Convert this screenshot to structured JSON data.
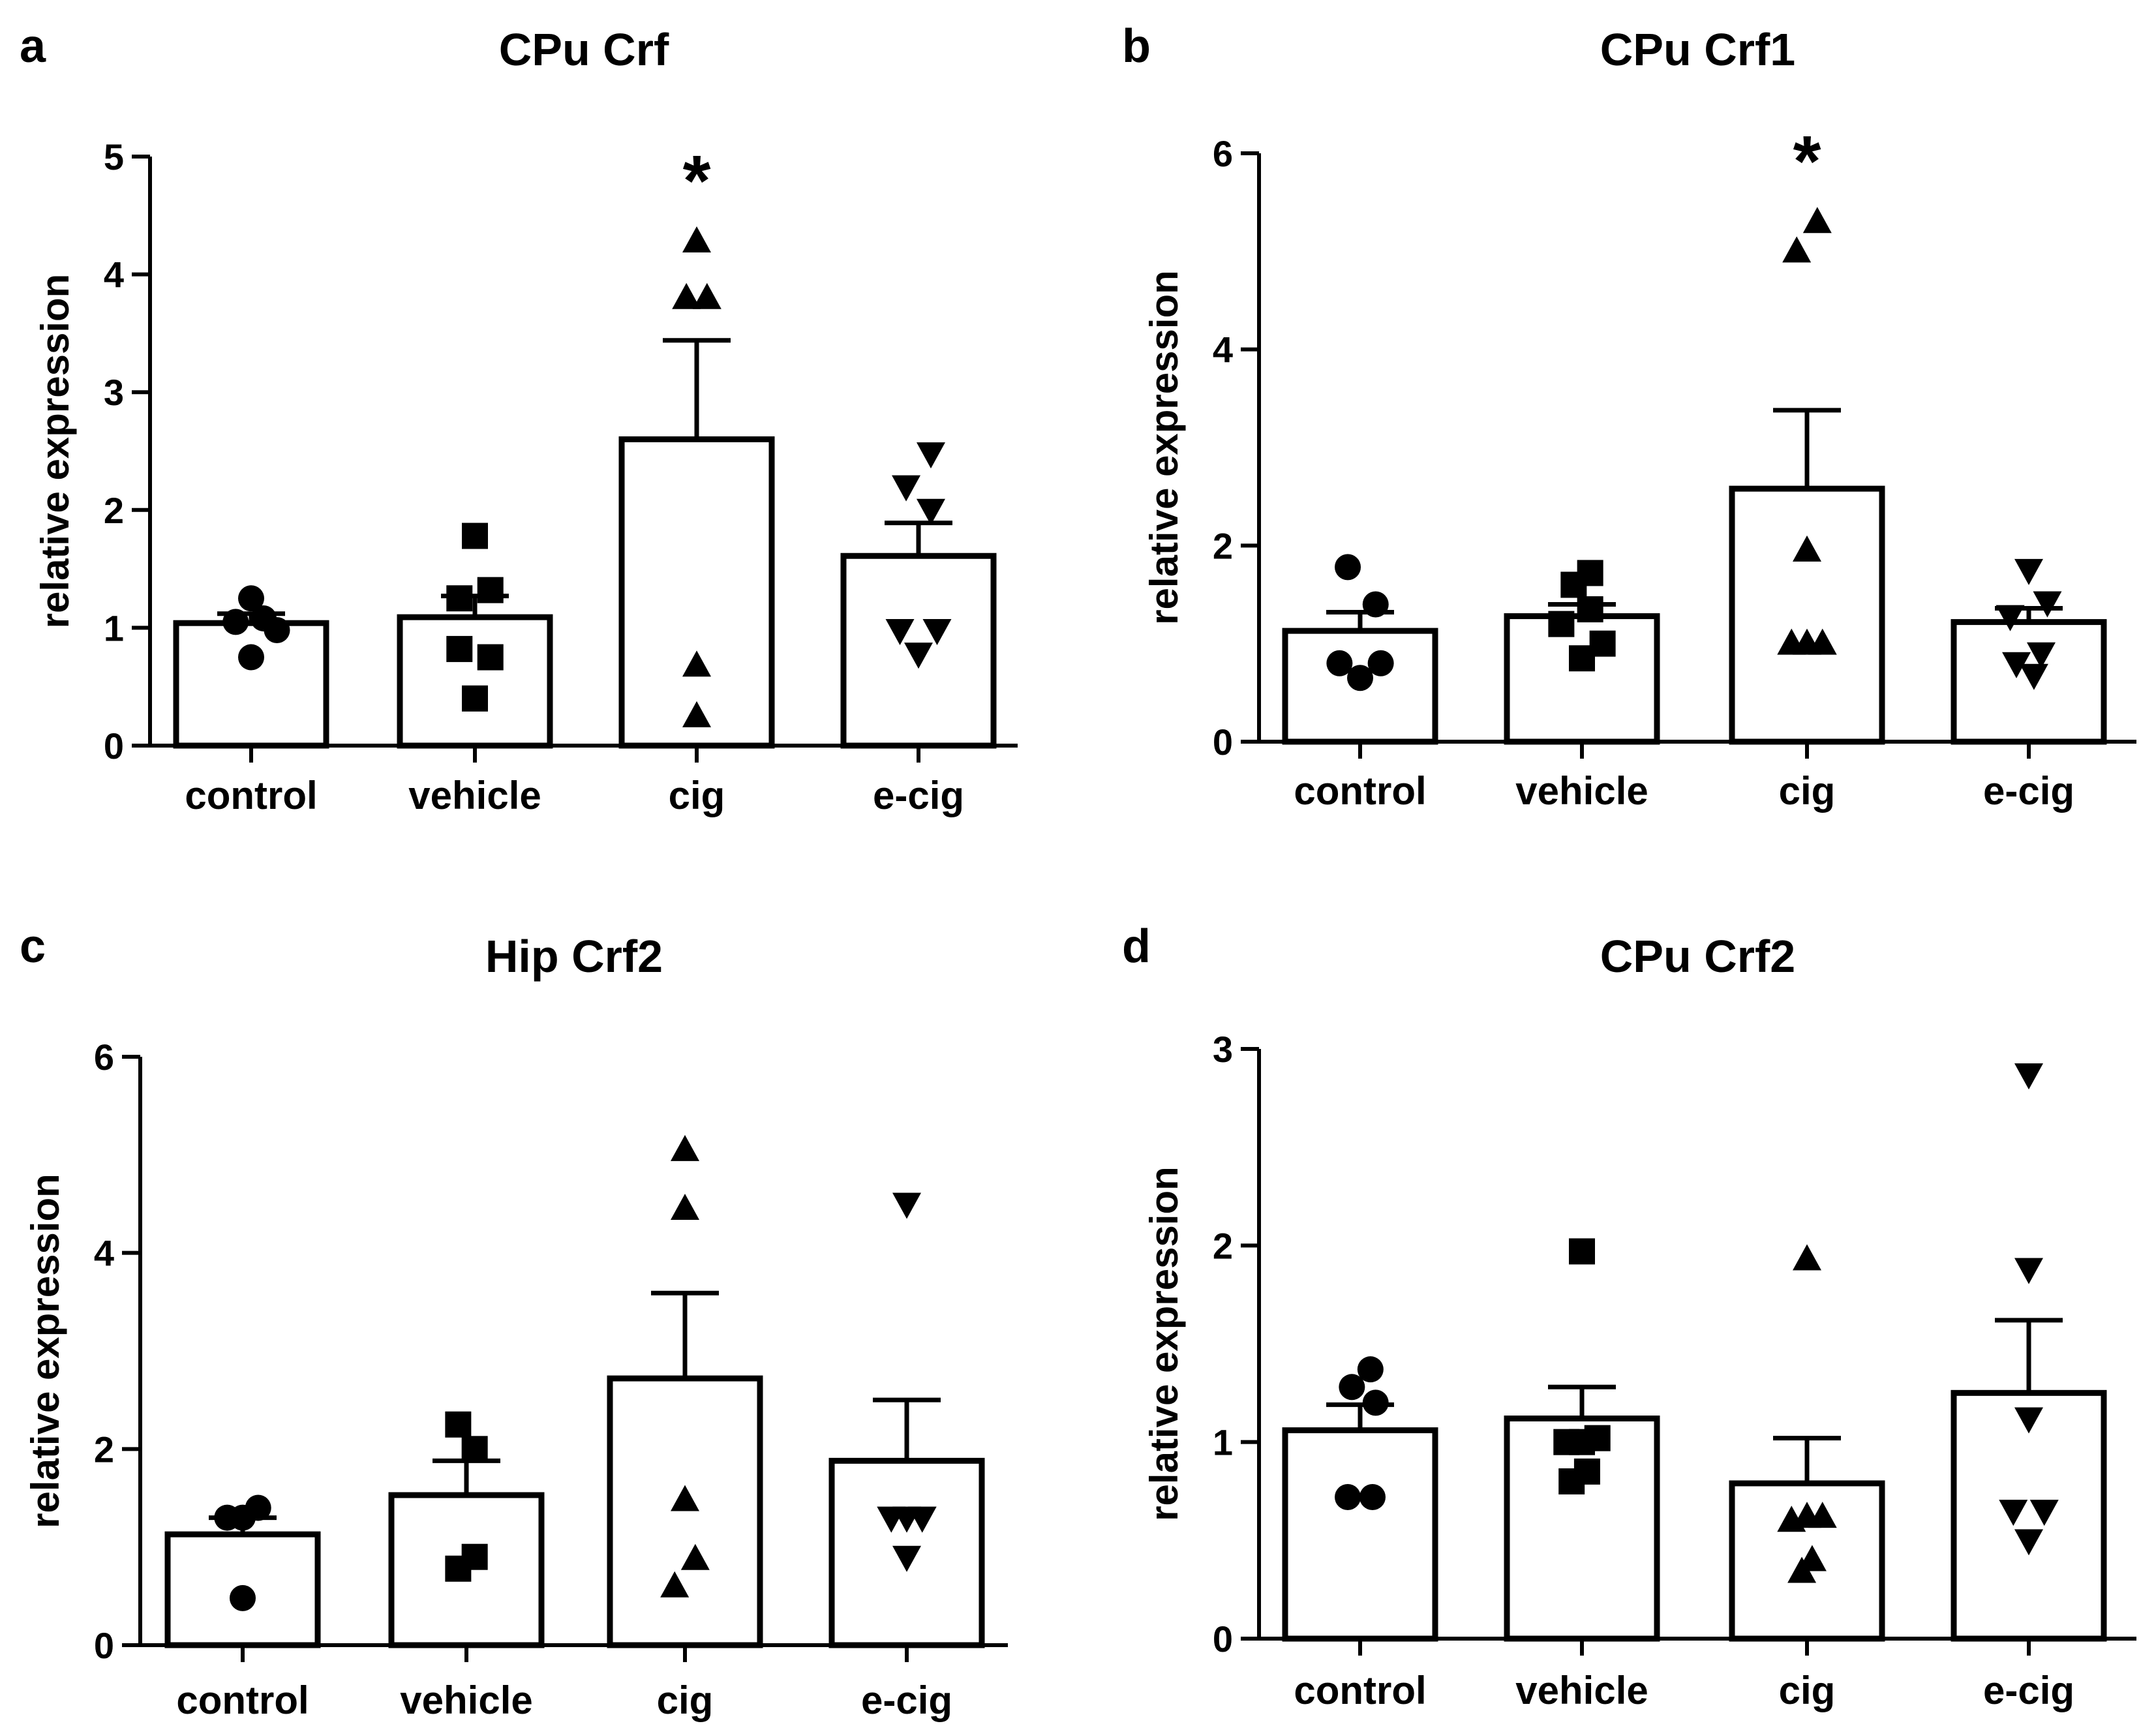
{
  "chart_data": [
    {
      "panel_label": "a",
      "type": "bar",
      "title": "CPu Crf",
      "ylabel": "relative expression",
      "xlabel": "",
      "ylim": [
        0,
        5
      ],
      "yticks": [
        "0",
        "1",
        "2",
        "3",
        "4",
        "5"
      ],
      "categories": [
        "control",
        "vehicle",
        "cig",
        "e-cig"
      ],
      "values": [
        1.04,
        1.09,
        2.6,
        1.61
      ],
      "errors": [
        0.08,
        0.18,
        0.84,
        0.28
      ],
      "markers": [
        "circle",
        "square",
        "triangle-up",
        "triangle-down"
      ],
      "points": [
        [
          [
            -0.15,
            1.05
          ],
          [
            0.0,
            1.25
          ],
          [
            0.12,
            1.08
          ],
          [
            0.25,
            0.98
          ],
          [
            0.0,
            0.75
          ]
        ],
        [
          [
            0.0,
            1.78
          ],
          [
            -0.15,
            1.25
          ],
          [
            0.15,
            1.32
          ],
          [
            -0.15,
            0.82
          ],
          [
            0.15,
            0.75
          ],
          [
            0.0,
            0.4
          ]
        ],
        [
          [
            0.0,
            4.28
          ],
          [
            -0.1,
            3.8
          ],
          [
            0.1,
            3.8
          ],
          [
            0.0,
            0.68
          ],
          [
            0.0,
            0.25
          ]
        ],
        [
          [
            0.12,
            2.48
          ],
          [
            -0.12,
            2.2
          ],
          [
            0.12,
            2.0
          ],
          [
            -0.18,
            0.98
          ],
          [
            0.18,
            0.98
          ],
          [
            0.0,
            0.78
          ]
        ]
      ],
      "annotations": [
        {
          "category": "cig",
          "text": "*"
        }
      ]
    },
    {
      "panel_label": "b",
      "type": "bar",
      "title": "CPu Crf1",
      "ylabel": "relative expression",
      "xlabel": "",
      "ylim": [
        0,
        6
      ],
      "yticks": [
        "0",
        "2",
        "4",
        "6"
      ],
      "categories": [
        "control",
        "vehicle",
        "cig",
        "e-cig"
      ],
      "values": [
        1.13,
        1.28,
        2.58,
        1.22
      ],
      "errors": [
        0.19,
        0.12,
        0.8,
        0.14
      ],
      "markers": [
        "circle",
        "square",
        "triangle-up",
        "triangle-down"
      ],
      "points": [
        [
          [
            -0.12,
            1.78
          ],
          [
            0.15,
            1.4
          ],
          [
            -0.2,
            0.8
          ],
          [
            0.2,
            0.8
          ],
          [
            0.0,
            0.65
          ]
        ],
        [
          [
            -0.08,
            1.6
          ],
          [
            0.08,
            1.72
          ],
          [
            -0.2,
            1.2
          ],
          [
            0.2,
            1.0
          ],
          [
            0.0,
            0.85
          ],
          [
            0.08,
            1.35
          ]
        ],
        [
          [
            0.1,
            5.3
          ],
          [
            -0.1,
            5.0
          ],
          [
            0.0,
            1.95
          ],
          [
            -0.15,
            1.0
          ],
          [
            0.0,
            1.0
          ],
          [
            0.15,
            1.0
          ]
        ],
        [
          [
            0.0,
            1.75
          ],
          [
            -0.18,
            1.28
          ],
          [
            0.18,
            1.42
          ],
          [
            -0.12,
            0.8
          ],
          [
            0.12,
            0.9
          ],
          [
            0.05,
            0.68
          ]
        ]
      ],
      "annotations": [
        {
          "category": "cig",
          "text": "*"
        }
      ]
    },
    {
      "panel_label": "c",
      "type": "bar",
      "title": "Hip Crf2",
      "ylabel": "relative expression",
      "xlabel": "",
      "ylim": [
        0,
        6
      ],
      "yticks": [
        "0",
        "2",
        "4",
        "6"
      ],
      "categories": [
        "control",
        "vehicle",
        "cig",
        "e-cig"
      ],
      "values": [
        1.13,
        1.53,
        2.72,
        1.88
      ],
      "errors": [
        0.17,
        0.35,
        0.87,
        0.62
      ],
      "markers": [
        "circle",
        "square",
        "triangle-up",
        "triangle-down"
      ],
      "points": [
        [
          [
            -0.15,
            1.3
          ],
          [
            0.0,
            1.3
          ],
          [
            0.15,
            1.4
          ],
          [
            0.0,
            0.48
          ]
        ],
        [
          [
            -0.08,
            2.25
          ],
          [
            0.08,
            2.0
          ],
          [
            -0.08,
            0.78
          ],
          [
            0.08,
            0.9
          ]
        ],
        [
          [
            0.0,
            5.05
          ],
          [
            0.0,
            4.45
          ],
          [
            0.0,
            1.48
          ],
          [
            0.1,
            0.88
          ],
          [
            -0.1,
            0.6
          ]
        ],
        [
          [
            0.0,
            4.5
          ],
          [
            -0.15,
            1.3
          ],
          [
            0.0,
            1.3
          ],
          [
            0.15,
            1.3
          ],
          [
            0.0,
            0.9
          ]
        ]
      ],
      "annotations": []
    },
    {
      "panel_label": "d",
      "type": "bar",
      "title": "CPu Crf2",
      "ylabel": "relative expression",
      "xlabel": "",
      "ylim": [
        0,
        3
      ],
      "yticks": [
        "0",
        "1",
        "2",
        "3"
      ],
      "categories": [
        "control",
        "vehicle",
        "cig",
        "e-cig"
      ],
      "values": [
        1.06,
        1.12,
        0.79,
        1.25
      ],
      "errors": [
        0.13,
        0.16,
        0.23,
        0.37
      ],
      "markers": [
        "circle",
        "square",
        "triangle-up",
        "triangle-down"
      ],
      "points": [
        [
          [
            0.1,
            1.37
          ],
          [
            -0.08,
            1.28
          ],
          [
            0.15,
            1.2
          ],
          [
            -0.12,
            0.72
          ],
          [
            0.12,
            0.72
          ]
        ],
        [
          [
            0.0,
            1.97
          ],
          [
            -0.15,
            1.0
          ],
          [
            0.0,
            1.0
          ],
          [
            0.15,
            1.02
          ],
          [
            -0.1,
            0.8
          ],
          [
            0.05,
            0.85
          ]
        ],
        [
          [
            -0.15,
            0.6
          ],
          [
            0.0,
            0.62
          ],
          [
            0.15,
            0.62
          ],
          [
            0.05,
            0.4
          ],
          [
            0.0,
            1.93
          ],
          [
            -0.05,
            0.34
          ]
        ],
        [
          [
            0.0,
            2.87
          ],
          [
            0.0,
            1.88
          ],
          [
            0.0,
            1.12
          ],
          [
            -0.15,
            0.65
          ],
          [
            0.15,
            0.65
          ],
          [
            0.0,
            0.5
          ]
        ]
      ],
      "annotations": []
    }
  ]
}
